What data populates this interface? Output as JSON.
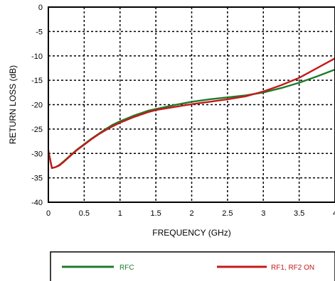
{
  "chart_data": {
    "type": "line",
    "title": "",
    "xlabel": "FREQUENCY (GHz)",
    "ylabel": "RETURN LOSS (dB)",
    "xlim": [
      0,
      4
    ],
    "ylim": [
      -40,
      0
    ],
    "xticks": [
      0,
      0.5,
      1,
      1.5,
      2,
      2.5,
      3,
      3.5,
      4
    ],
    "xtick_labels": [
      "0",
      "0.5",
      "1",
      "1.5",
      "2",
      "2.5",
      "3",
      "3.5",
      "4"
    ],
    "yticks": [
      0,
      -5,
      -10,
      -15,
      -20,
      -25,
      -30,
      -35,
      -40
    ],
    "ytick_labels": [
      "0",
      "-5",
      "-10",
      "-15",
      "-20",
      "-25",
      "-30",
      "-35",
      "-40"
    ],
    "grid": true,
    "legend_position": "bottom",
    "series": [
      {
        "name": "RFC",
        "color": "#1f7a2a",
        "x": [
          0,
          0.05,
          0.1,
          0.15,
          0.2,
          0.3,
          0.4,
          0.5,
          0.6,
          0.7,
          0.8,
          0.9,
          1.0,
          1.1,
          1.2,
          1.3,
          1.4,
          1.5,
          1.75,
          2.0,
          2.25,
          2.5,
          2.75,
          3.0,
          3.25,
          3.5,
          3.75,
          4.0
        ],
        "y": [
          -29.5,
          -33.0,
          -32.8,
          -32.4,
          -31.8,
          -30.5,
          -29.2,
          -28.1,
          -27.0,
          -26.0,
          -25.0,
          -24.1,
          -23.4,
          -22.8,
          -22.2,
          -21.7,
          -21.2,
          -20.9,
          -20.1,
          -19.4,
          -18.9,
          -18.5,
          -18.1,
          -17.5,
          -16.6,
          -15.5,
          -14.2,
          -12.8
        ]
      },
      {
        "name": "RF1, RF2 ON",
        "color": "#c41a1a",
        "x": [
          0,
          0.05,
          0.1,
          0.15,
          0.2,
          0.3,
          0.4,
          0.5,
          0.6,
          0.7,
          0.8,
          0.9,
          1.0,
          1.1,
          1.2,
          1.3,
          1.4,
          1.5,
          1.75,
          2.0,
          2.25,
          2.5,
          2.75,
          3.0,
          3.25,
          3.5,
          3.75,
          4.0
        ],
        "y": [
          -29.5,
          -33.0,
          -32.8,
          -32.5,
          -31.9,
          -30.6,
          -29.3,
          -28.2,
          -27.1,
          -26.1,
          -25.2,
          -24.4,
          -23.7,
          -23.1,
          -22.5,
          -22.0,
          -21.5,
          -21.1,
          -20.5,
          -19.9,
          -19.4,
          -18.9,
          -18.3,
          -17.3,
          -16.0,
          -14.5,
          -12.5,
          -10.5
        ]
      }
    ]
  }
}
